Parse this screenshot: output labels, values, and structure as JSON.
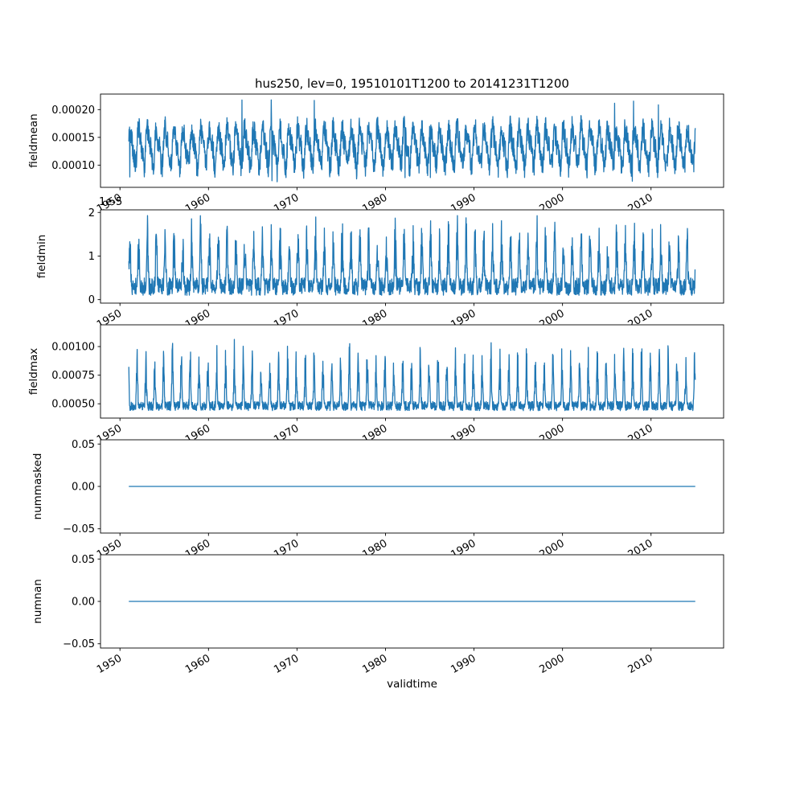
{
  "chart_data": {
    "type": "line",
    "title": "hus250, lev=0, 19510101T1200 to 20141231T1200",
    "xlabel": "validtime",
    "line_color": "#1f77b4",
    "legend": "none",
    "grid": false,
    "x_range": [
      1951.0,
      2015.0
    ],
    "xlim": [
      1947.8,
      2018.2
    ],
    "xticks": [
      1950,
      1960,
      1970,
      1980,
      1990,
      2000,
      2010
    ],
    "subplots": [
      {
        "ylabel": "fieldmean",
        "ylim": [
          6e-05,
          0.000228
        ],
        "yticks": [
          {
            "value": 0.0001,
            "label": "0.00010"
          },
          {
            "value": 0.00015,
            "label": "0.00015"
          },
          {
            "value": 0.0002,
            "label": "0.00020"
          }
        ],
        "series": {
          "pattern": "seasonal",
          "mean": 0.000133,
          "annual_amp": 3e-05,
          "semi_amp": 1e-05,
          "noise": 4.5e-05,
          "min": 6.8e-05,
          "max": 0.00022,
          "period_years": 1
        }
      },
      {
        "ylabel": "fieldmin",
        "offset_text": "1e-5",
        "ylim": [
          -8e-07,
          2.06e-05
        ],
        "yticks": [
          {
            "value": 0,
            "label": "0"
          },
          {
            "value": 1e-05,
            "label": "1"
          },
          {
            "value": 2e-05,
            "label": "2"
          }
        ],
        "series": {
          "pattern": "spikes_up",
          "base": 1e-06,
          "base_noise": 4e-06,
          "spike_amp": 1.5e-05,
          "spike_sharpness": 3,
          "phase": 0.9,
          "min": 2e-07,
          "max": 2e-05,
          "period_years": 1
        }
      },
      {
        "ylabel": "fieldmax",
        "ylim": [
          0.000375,
          0.00119
        ],
        "yticks": [
          {
            "value": 0.0005,
            "label": "0.00050"
          },
          {
            "value": 0.00075,
            "label": "0.00075"
          },
          {
            "value": 0.001,
            "label": "0.00100"
          }
        ],
        "series": {
          "pattern": "spikes_up",
          "base": 0.00044,
          "base_noise": 8e-05,
          "spike_amp": 0.00056,
          "spike_sharpness": 5,
          "phase": 2.0,
          "min": 0.0004,
          "max": 0.00115,
          "period_years": 1
        }
      },
      {
        "ylabel": "nummasked",
        "ylim": [
          -0.055,
          0.055
        ],
        "yticks": [
          {
            "value": -0.05,
            "label": "−0.05"
          },
          {
            "value": 0,
            "label": "0.00"
          },
          {
            "value": 0.05,
            "label": "0.05"
          }
        ],
        "series": {
          "pattern": "constant",
          "value": 0
        }
      },
      {
        "ylabel": "numnan",
        "ylim": [
          -0.055,
          0.055
        ],
        "yticks": [
          {
            "value": -0.05,
            "label": "−0.05"
          },
          {
            "value": 0,
            "label": "0.00"
          },
          {
            "value": 0.05,
            "label": "0.05"
          }
        ],
        "series": {
          "pattern": "constant",
          "value": 0
        }
      }
    ]
  }
}
